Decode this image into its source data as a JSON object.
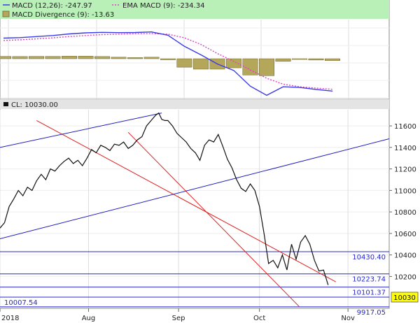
{
  "colors": {
    "legend_bg": "#b8f0b8",
    "macd_line": "#3a3ae8",
    "ema_line": "#e040c8",
    "hist_fill": "#b5a75a",
    "hist_stroke": "#6e6632",
    "channel_red": "#e02020",
    "trend_blue": "#2020c0",
    "hline_blue": "#2828c8",
    "price_line": "#111111",
    "last_price_bg": "#ffff00"
  },
  "chart_data": [
    {
      "type": "line",
      "panel": "macd",
      "legend": [
        {
          "label": "MACD (12,26): -247.97",
          "swatch": "line-blue"
        },
        {
          "label": "EMA MACD (9): -234.34",
          "swatch": "line-magenta-dotted"
        },
        {
          "label": "MACD Divergence (9): -13.63",
          "swatch": "box-olive"
        }
      ],
      "x": [
        0,
        10,
        20,
        30,
        40,
        50,
        60,
        70,
        80,
        90,
        100,
        110,
        120,
        130,
        140,
        150,
        160,
        170,
        180,
        190,
        200
      ],
      "series": [
        {
          "name": "MACD (12,26)",
          "role": "macd",
          "values": [
            158,
            162,
            170,
            178,
            190,
            198,
            202,
            200,
            201,
            205,
            180,
            95,
            30,
            -40,
            -90,
            -210,
            -280,
            -215,
            -220,
            -235,
            -248
          ]
        },
        {
          "name": "EMA MACD (9)",
          "role": "ema",
          "values": [
            140,
            145,
            152,
            160,
            170,
            178,
            185,
            188,
            192,
            193,
            188,
            160,
            110,
            40,
            -20,
            -85,
            -150,
            -195,
            -215,
            -225,
            -234
          ]
        },
        {
          "name": "MACD Divergence (9)",
          "role": "histogram",
          "values": [
            18,
            17,
            18,
            18,
            20,
            20,
            17,
            12,
            9,
            12,
            -8,
            -65,
            -80,
            -80,
            -70,
            -125,
            -130,
            -20,
            -5,
            -10,
            -14
          ]
        }
      ],
      "ylim": [
        -300,
        300
      ]
    },
    {
      "type": "line",
      "panel": "price",
      "legend": [
        {
          "label": "CL: 10030.00",
          "swatch": "box-black"
        }
      ],
      "x_ticks": [
        {
          "label": "2018",
          "x": 0
        },
        {
          "label": "Aug",
          "x": 58
        },
        {
          "label": "Sep",
          "x": 117
        },
        {
          "label": "Oct",
          "x": 170
        },
        {
          "label": "Nov",
          "x": 228
        }
      ],
      "y_ticks": [
        10200,
        10400,
        10600,
        10800,
        11000,
        11200,
        11400,
        11600
      ],
      "xlim": [
        0,
        255
      ],
      "ylim": [
        9910,
        11750
      ],
      "series": [
        {
          "name": "CL",
          "x": [
            0,
            3,
            6,
            9,
            12,
            15,
            18,
            21,
            24,
            27,
            30,
            33,
            36,
            39,
            42,
            45,
            48,
            51,
            54,
            57,
            60,
            63,
            66,
            69,
            72,
            75,
            78,
            81,
            84,
            87,
            90,
            93,
            96,
            99,
            102,
            104,
            106,
            108,
            110,
            113,
            116,
            119,
            122,
            125,
            128,
            131,
            134,
            137,
            140,
            143,
            146,
            149,
            152,
            155,
            158,
            161,
            164,
            167,
            170,
            173,
            176,
            179,
            182,
            185,
            188,
            191,
            194,
            197,
            200,
            203,
            206,
            209,
            212,
            215
          ],
          "values": [
            10650,
            10700,
            10850,
            10920,
            11000,
            10950,
            11030,
            11000,
            11090,
            11150,
            11100,
            11200,
            11180,
            11230,
            11270,
            11300,
            11250,
            11280,
            11230,
            11300,
            11380,
            11350,
            11420,
            11400,
            11370,
            11430,
            11420,
            11450,
            11390,
            11420,
            11470,
            11500,
            11600,
            11650,
            11700,
            11720,
            11660,
            11650,
            11650,
            11600,
            11530,
            11490,
            11450,
            11390,
            11350,
            11280,
            11420,
            11470,
            11450,
            11520,
            11410,
            11290,
            11210,
            11100,
            11020,
            10990,
            11060,
            11000,
            10850,
            10600,
            10320,
            10350,
            10280,
            10400,
            10260,
            10500,
            10360,
            10520,
            10580,
            10500,
            10350,
            10250,
            10260,
            10120
          ]
        },
        {
          "name": "EMA channel upper",
          "role": "red-channel",
          "x": [
            24,
            220
          ],
          "values": [
            11650,
            10150
          ]
        },
        {
          "name": "EMA channel lower",
          "role": "red-channel",
          "x": [
            84,
            196
          ],
          "values": [
            11540,
            9920
          ]
        },
        {
          "name": "Trend upper",
          "role": "blue-trend",
          "x": [
            0,
            106
          ],
          "values": [
            11400,
            11720
          ]
        },
        {
          "name": "Trend lower",
          "role": "blue-trend",
          "x": [
            0,
            255
          ],
          "values": [
            10550,
            11480
          ]
        }
      ],
      "hlines": [
        {
          "label": "10430.40",
          "value": 10430.4
        },
        {
          "label": "10223.74",
          "value": 10223.74
        },
        {
          "label": "10101.37",
          "value": 10101.37
        },
        {
          "label": "10007.54",
          "value": 10007.54
        },
        {
          "label": "9917.05",
          "value": 9917.05
        }
      ],
      "last_price_label": "10030"
    }
  ]
}
